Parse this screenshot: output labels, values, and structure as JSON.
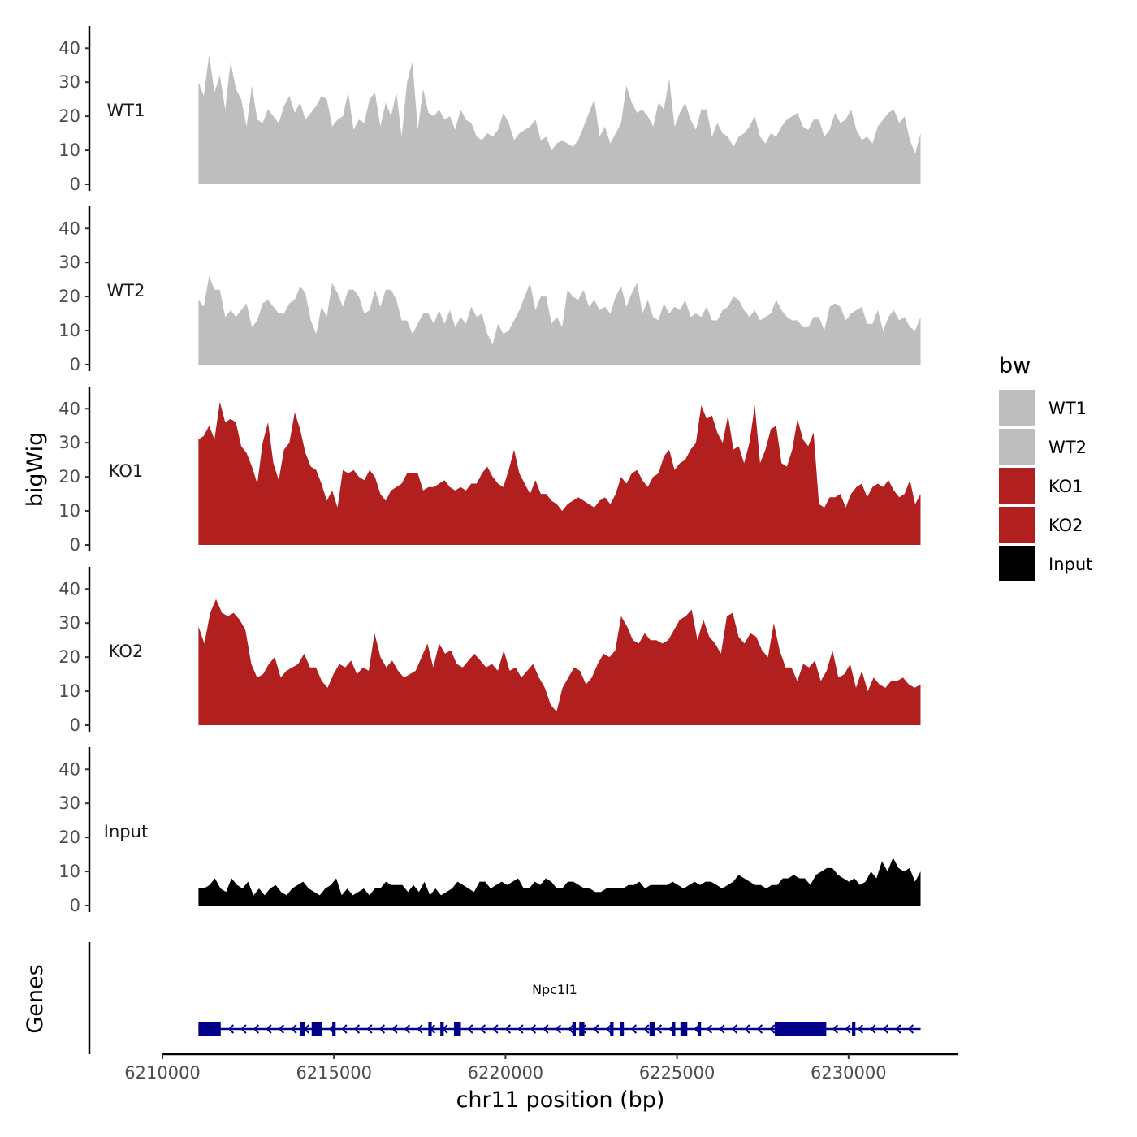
{
  "chart_data": {
    "type": "area",
    "ylabel": "bigWig",
    "xlabel": "chr11 position (bp)",
    "ylim": [
      0,
      45
    ],
    "y_ticks": [
      0,
      10,
      20,
      30,
      40
    ],
    "xlim": [
      6210000,
      6233200
    ],
    "x_ticks": [
      6210000,
      6215000,
      6220000,
      6225000,
      6230000
    ],
    "x_tick_labels": [
      "6210000",
      "6215000",
      "6220000",
      "6225000",
      "6230000"
    ],
    "region": [
      6211050,
      6232100
    ],
    "legend": {
      "title": "bw",
      "position": "right",
      "entries": [
        {
          "label": "WT1",
          "color": "#bebebe"
        },
        {
          "label": "WT2",
          "color": "#bebebe"
        },
        {
          "label": "KO1",
          "color": "#b21f1f"
        },
        {
          "label": "KO2",
          "color": "#b21f1f"
        },
        {
          "label": "Input",
          "color": "#000000"
        }
      ]
    },
    "series": [
      {
        "name": "WT1",
        "color": "#bebebe",
        "values": [
          30,
          26,
          38,
          27,
          32,
          22,
          36,
          28,
          25,
          17,
          29,
          19,
          18,
          22,
          20,
          18,
          23,
          26,
          21,
          24,
          19,
          21,
          23,
          26,
          25,
          17,
          19,
          20,
          27,
          16,
          19,
          18,
          25,
          27,
          17,
          24,
          20,
          27,
          14,
          30,
          36,
          16,
          28,
          21,
          20,
          22,
          19,
          20,
          16,
          22,
          19,
          18,
          14,
          13,
          15,
          14,
          16,
          21,
          18,
          13,
          15,
          16,
          17,
          19,
          13,
          14,
          10,
          12,
          13,
          12,
          11,
          13,
          17,
          21,
          25,
          14,
          17,
          12,
          15,
          18,
          29,
          24,
          21,
          22,
          20,
          17,
          24,
          22,
          31,
          17,
          21,
          24,
          19,
          16,
          22,
          22,
          14,
          18,
          15,
          14,
          11,
          14,
          15,
          17,
          20,
          14,
          12,
          15,
          14,
          17,
          19,
          20,
          21,
          17,
          16,
          19,
          19,
          14,
          16,
          21,
          18,
          19,
          22,
          16,
          13,
          14,
          12,
          17,
          19,
          21,
          22,
          18,
          20,
          13,
          9,
          15
        ]
      },
      {
        "name": "WT2",
        "color": "#bebebe",
        "values": [
          19,
          17,
          26,
          22,
          22,
          14,
          16,
          14,
          16,
          18,
          11,
          13,
          18,
          19,
          17,
          15,
          15,
          18,
          19,
          23,
          21,
          13,
          9,
          17,
          14,
          24,
          21,
          17,
          22,
          22,
          20,
          15,
          16,
          22,
          17,
          22,
          22,
          19,
          13,
          13,
          9,
          12,
          15,
          15,
          12,
          16,
          12,
          16,
          11,
          14,
          12,
          17,
          14,
          15,
          9,
          6,
          12,
          9,
          10,
          13,
          16,
          20,
          24,
          16,
          20,
          20,
          12,
          14,
          11,
          22,
          20,
          19,
          22,
          17,
          19,
          16,
          17,
          15,
          20,
          23,
          17,
          21,
          24,
          15,
          19,
          14,
          13,
          18,
          15,
          17,
          16,
          19,
          14,
          15,
          14,
          17,
          13,
          13,
          16,
          17,
          20,
          19,
          16,
          14,
          16,
          13,
          14,
          15,
          19,
          16,
          14,
          13,
          13,
          11,
          11,
          14,
          14,
          10,
          17,
          18,
          17,
          13,
          15,
          16,
          17,
          12,
          12,
          16,
          10,
          14,
          16,
          13,
          14,
          11,
          10,
          14
        ]
      },
      {
        "name": "KO1",
        "color": "#b21f1f",
        "values": [
          31,
          32,
          35,
          31,
          42,
          36,
          37,
          36,
          29,
          27,
          23,
          18,
          30,
          36,
          24,
          19,
          28,
          30,
          39,
          34,
          27,
          23,
          22,
          18,
          13,
          16,
          11,
          22,
          21,
          22,
          20,
          19,
          22,
          20,
          15,
          13,
          16,
          17,
          18,
          21,
          21,
          21,
          16,
          17,
          17,
          18,
          19,
          17,
          16,
          17,
          16,
          18,
          18,
          21,
          23,
          20,
          18,
          17,
          22,
          28,
          21,
          18,
          15,
          19,
          15,
          15,
          13,
          12,
          10,
          12,
          13,
          14,
          13,
          12,
          11,
          13,
          14,
          12,
          15,
          20,
          18,
          21,
          22,
          19,
          17,
          20,
          21,
          26,
          28,
          22,
          24,
          25,
          28,
          30,
          41,
          37,
          38,
          33,
          30,
          38,
          28,
          29,
          24,
          30,
          41,
          24,
          28,
          34,
          35,
          24,
          23,
          28,
          37,
          31,
          29,
          33,
          12,
          11,
          14,
          14,
          15,
          11,
          15,
          17,
          18,
          14,
          17,
          18,
          17,
          19,
          16,
          14,
          15,
          19,
          12,
          15
        ]
      },
      {
        "name": "KO2",
        "color": "#b21f1f",
        "values": [
          29,
          24,
          33,
          37,
          33,
          32,
          33,
          31,
          28,
          18,
          14,
          15,
          18,
          20,
          14,
          16,
          17,
          18,
          21,
          17,
          17,
          13,
          11,
          15,
          18,
          17,
          19,
          15,
          17,
          16,
          27,
          20,
          17,
          19,
          16,
          14,
          15,
          16,
          20,
          24,
          17,
          24,
          21,
          22,
          18,
          17,
          19,
          21,
          19,
          17,
          18,
          16,
          22,
          16,
          17,
          14,
          16,
          18,
          14,
          11,
          6,
          4,
          11,
          14,
          17,
          16,
          12,
          14,
          18,
          21,
          20,
          22,
          32,
          29,
          25,
          24,
          27,
          25,
          25,
          24,
          25,
          28,
          31,
          32,
          34,
          25,
          31,
          26,
          24,
          21,
          32,
          33,
          26,
          24,
          27,
          26,
          22,
          20,
          30,
          22,
          17,
          17,
          13,
          18,
          17,
          19,
          13,
          16,
          22,
          14,
          15,
          18,
          11,
          16,
          10,
          14,
          12,
          11,
          13,
          13,
          14,
          12,
          11,
          12
        ]
      },
      {
        "name": "Input",
        "color": "#000000",
        "values": [
          5,
          5,
          6,
          8,
          5,
          4,
          8,
          6,
          5,
          7,
          3,
          5,
          3,
          5,
          6,
          4,
          3,
          5,
          6,
          7,
          5,
          4,
          3,
          5,
          6,
          8,
          3,
          5,
          3,
          4,
          5,
          3,
          5,
          5,
          7,
          6,
          6,
          6,
          4,
          6,
          4,
          7,
          3,
          5,
          3,
          4,
          5,
          7,
          6,
          5,
          4,
          7,
          7,
          5,
          6,
          7,
          6,
          7,
          8,
          5,
          5,
          7,
          6,
          8,
          7,
          5,
          5,
          7,
          7,
          6,
          5,
          5,
          4,
          4,
          5,
          5,
          5,
          5,
          6,
          6,
          7,
          5,
          6,
          6,
          6,
          6,
          7,
          6,
          5,
          6,
          7,
          6,
          7,
          7,
          6,
          5,
          6,
          7,
          9,
          8,
          7,
          6,
          6,
          5,
          6,
          6,
          8,
          8,
          9,
          8,
          8,
          6,
          9,
          10,
          11,
          11,
          9,
          8,
          7,
          8,
          6,
          7,
          10,
          8,
          13,
          10,
          14,
          11,
          10,
          11,
          7,
          10
        ]
      }
    ],
    "genes": [
      {
        "name": "Npc1l1",
        "strand": "-",
        "start": 6211050,
        "end": 6232100,
        "exons": [
          [
            6211050,
            6211700
          ],
          [
            6214000,
            6214150
          ],
          [
            6214350,
            6214650
          ],
          [
            6214950,
            6215050
          ],
          [
            6217750,
            6217850
          ],
          [
            6218100,
            6218200
          ],
          [
            6218500,
            6218700
          ],
          [
            6221950,
            6222050
          ],
          [
            6222150,
            6222300
          ],
          [
            6223050,
            6223150
          ],
          [
            6223350,
            6223450
          ],
          [
            6224200,
            6224350
          ],
          [
            6224850,
            6224950
          ],
          [
            6225100,
            6225300
          ],
          [
            6225600,
            6225700
          ],
          [
            6227850,
            6229350
          ],
          [
            6230100,
            6230200
          ]
        ]
      }
    ],
    "genes_label": "Genes",
    "grid": false
  }
}
